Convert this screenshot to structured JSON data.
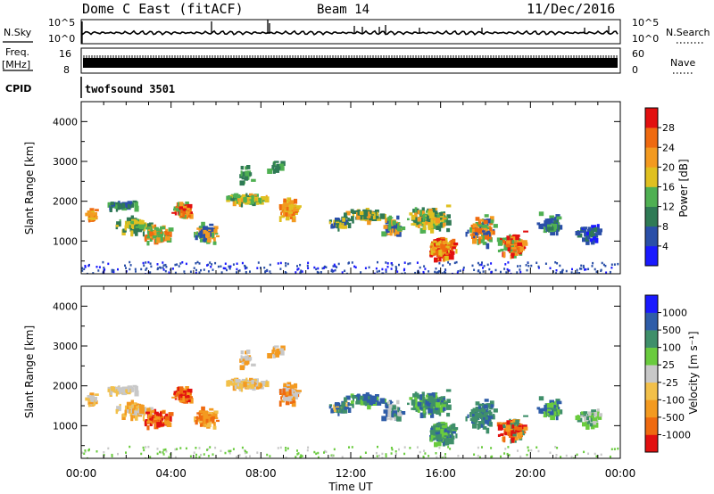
{
  "header": {
    "station": "Dome C East (fitACF)",
    "beam": "Beam 14",
    "date": "11/Dec/2016"
  },
  "strip_labels": {
    "nsky": "N.Sky",
    "nsky_top": "10^5",
    "nsky_bottom": "10^0",
    "nsearch": "N.Search",
    "nsearch_top": "10^5",
    "nsearch_bottom": "10^0",
    "freq_line1": "Freq.",
    "freq_line2": "[MHz]",
    "freq_top": "16",
    "freq_bottom": "8",
    "nave": "Nave",
    "nave_top": "60",
    "nave_bottom": "0",
    "cpid": "CPID",
    "program": "twofsound 3501"
  },
  "colors": {
    "power_scale": [
      "#1a1aff",
      "#2a4fa8",
      "#2f7a55",
      "#4fb052",
      "#e0c020",
      "#f39a20",
      "#ef6a10",
      "#e21010"
    ],
    "velocity_scale": [
      "#e21010",
      "#ef6a10",
      "#f39a20",
      "#f2c04a",
      "#c8c8c8",
      "#6acb3e",
      "#3f8f6a",
      "#2f5da8",
      "#1a1aff"
    ]
  },
  "chart_data": [
    {
      "type": "heatmap",
      "ylabel": "Slant Range [km]",
      "ylim": [
        180,
        4500
      ],
      "yticks": [
        "1000",
        "2000",
        "3000",
        "4000"
      ],
      "colorbar_label": "Power [dB]",
      "colorbar_ticks": [
        "4",
        "8",
        "12",
        "16",
        "20",
        "24",
        "28"
      ],
      "colorbar_range": [
        0,
        32
      ],
      "grid": false
    },
    {
      "type": "heatmap",
      "ylabel": "Slant Range [km]",
      "ylim": [
        180,
        4500
      ],
      "yticks": [
        "1000",
        "2000",
        "3000",
        "4000"
      ],
      "xlabel": "Time UT",
      "xticks": [
        "00:00",
        "04:00",
        "08:00",
        "12:00",
        "16:00",
        "20:00",
        "00:00"
      ],
      "colorbar_label": "Velocity [m s⁻¹]",
      "colorbar_ticks": [
        "1000",
        "500",
        "100",
        "25",
        "-25",
        "-100",
        "-500",
        "-1000"
      ],
      "grid": false
    }
  ]
}
